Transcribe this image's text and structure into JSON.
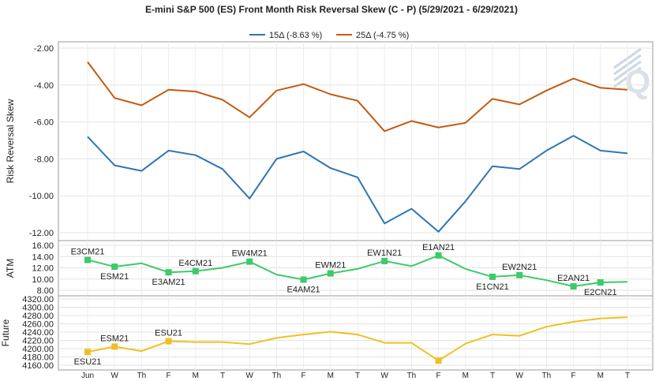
{
  "chart_data": {
    "title": "E-mini S&P 500 (ES) Front Month Risk Reversal Skew (C - P) (5/29/2021 - 6/29/2021)",
    "type": "line",
    "categories": [
      "Jun",
      "W",
      "Th",
      "F",
      "M",
      "T",
      "W",
      "Th",
      "F",
      "M",
      "T",
      "W",
      "Th",
      "F",
      "M",
      "T",
      "W",
      "Th",
      "F",
      "M",
      "T"
    ],
    "legend": {
      "placement": "top-center"
    },
    "watermark": "Q",
    "panels": [
      {
        "id": "skew",
        "ylabel": "Risk Reversal Skew",
        "ylim": [
          -12,
          -2
        ],
        "yticks": [
          "-2.00",
          "-4.00",
          "-6.00",
          "-8.00",
          "-10.00",
          "-12.00"
        ],
        "ytick_values": [
          -2,
          -4,
          -6,
          -8,
          -10,
          -12
        ],
        "grid": true,
        "series": [
          {
            "name": "15Δ (-8.63 %)",
            "color": "#2e75b6",
            "values": [
              -6.8,
              -8.35,
              -8.65,
              -7.55,
              -7.8,
              -8.55,
              -10.15,
              -8.0,
              -7.6,
              -8.5,
              -9.0,
              -11.5,
              -10.7,
              -11.95,
              -10.3,
              -8.4,
              -8.55,
              -7.55,
              -6.75,
              -7.55,
              -7.7
            ]
          },
          {
            "name": "25Δ (-4.75 %)",
            "color": "#c55a11",
            "values": [
              -2.75,
              -4.7,
              -5.1,
              -4.25,
              -4.35,
              -4.8,
              -5.75,
              -4.3,
              -3.95,
              -4.5,
              -4.85,
              -6.5,
              -5.95,
              -6.3,
              -6.05,
              -4.75,
              -5.05,
              -4.3,
              -3.65,
              -4.15,
              -4.25
            ]
          }
        ]
      },
      {
        "id": "atm",
        "ylabel": "ATM",
        "ylim": [
          8,
          16
        ],
        "yticks": [
          "16.00",
          "14.00",
          "12.00",
          "10.00",
          "8.00"
        ],
        "ytick_values": [
          16,
          14,
          12,
          10,
          8
        ],
        "grid": true,
        "color": "#3ec96a",
        "values": [
          13.4,
          12.2,
          12.8,
          11.2,
          11.4,
          12.0,
          13.1,
          10.8,
          9.9,
          11.0,
          11.8,
          13.2,
          12.3,
          14.2,
          11.8,
          10.4,
          10.7,
          9.8,
          8.7,
          9.4,
          9.5
        ],
        "markers": [
          0,
          1,
          3,
          4,
          6,
          8,
          9,
          11,
          13,
          15,
          16,
          18,
          19
        ],
        "annotations": [
          {
            "index": 0,
            "text": "E3CM21",
            "pos": "above"
          },
          {
            "index": 1,
            "text": "ESM21",
            "pos": "below"
          },
          {
            "index": 3,
            "text": "E3AM21",
            "pos": "below"
          },
          {
            "index": 4,
            "text": "E4CM21",
            "pos": "above"
          },
          {
            "index": 6,
            "text": "EW4M21",
            "pos": "above"
          },
          {
            "index": 8,
            "text": "E4AM21",
            "pos": "below"
          },
          {
            "index": 9,
            "text": "EWM21",
            "pos": "above"
          },
          {
            "index": 11,
            "text": "EW1N21",
            "pos": "above"
          },
          {
            "index": 13,
            "text": "E1AN21",
            "pos": "above"
          },
          {
            "index": 15,
            "text": "E1CN21",
            "pos": "below"
          },
          {
            "index": 16,
            "text": "EW2N21",
            "pos": "above"
          },
          {
            "index": 18,
            "text": "E2AN21",
            "pos": "above"
          },
          {
            "index": 19,
            "text": "E2CN21",
            "pos": "below"
          }
        ]
      },
      {
        "id": "future",
        "ylabel": "Future",
        "ylim": [
          4160,
          4320
        ],
        "yticks": [
          "4320.00",
          "4300.00",
          "4280.00",
          "4260.00",
          "4240.00",
          "4220.00",
          "4200.00",
          "4180.00",
          "4160.00"
        ],
        "ytick_values": [
          4320,
          4300,
          4280,
          4260,
          4240,
          4220,
          4200,
          4180,
          4160
        ],
        "grid": true,
        "color": "#f0c020",
        "values": [
          4192,
          4205,
          4194,
          4218,
          4216,
          4216,
          4211,
          4226,
          4234,
          4241,
          4234,
          4214,
          4214,
          4171,
          4212,
          4234,
          4231,
          4253,
          4265,
          4273,
          4276
        ],
        "markers": [
          0,
          1,
          3,
          13
        ],
        "annotations": [
          {
            "index": 0,
            "text": "ESU21",
            "pos": "below"
          },
          {
            "index": 1,
            "text": "ESM21",
            "pos": "above"
          },
          {
            "index": 3,
            "text": "ESU21",
            "pos": "above"
          }
        ]
      }
    ]
  }
}
